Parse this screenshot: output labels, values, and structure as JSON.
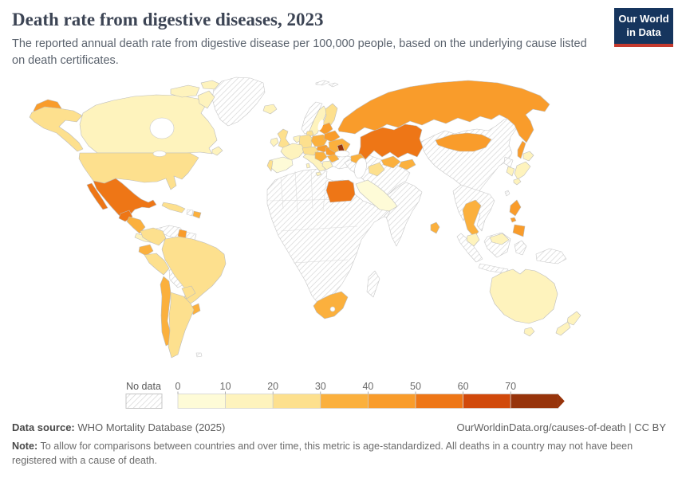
{
  "header": {
    "title": "Death rate from digestive diseases, 2023",
    "subtitle": "The reported annual death rate from digestive disease per 100,000 people, based on the underlying cause listed on death certificates."
  },
  "logo": {
    "line1": "Our World",
    "line2": "in Data",
    "bg_color": "#16355E",
    "bar_color": "#C53A2E"
  },
  "chart_data": {
    "type": "choropleth",
    "title": "Death rate from digestive diseases, 2023",
    "year": "2023",
    "unit": "deaths per 100,000 people (age-standardized)",
    "legend": {
      "no_data_label": "No data",
      "ticks": [
        "0",
        "10",
        "20",
        "30",
        "40",
        "50",
        "60",
        "70"
      ],
      "arrow_end": true,
      "bins": [
        {
          "range": "0-10",
          "color": "#FEFBD7"
        },
        {
          "range": "10-20",
          "color": "#FEF3BD"
        },
        {
          "range": "20-30",
          "color": "#FDE08E"
        },
        {
          "range": "30-40",
          "color": "#FBB03D"
        },
        {
          "range": "40-50",
          "color": "#F99C2B"
        },
        {
          "range": "50-60",
          "color": "#EE7616"
        },
        {
          "range": "60-70",
          "color": "#D1490B"
        },
        {
          "range": "70+",
          "color": "#97340B"
        }
      ]
    },
    "regions": {
      "greenland": {
        "label": "Greenland",
        "value": "no-data"
      },
      "svalbard": {
        "label": "Svalbard",
        "value": "no-data"
      },
      "canada": {
        "label": "Canada",
        "value": "10-20"
      },
      "arctic-islands": {
        "label": "Canadian Arctic Islands",
        "value": "10-20"
      },
      "newfoundland": {
        "label": "Newfoundland",
        "value": "10-20"
      },
      "alaska": {
        "label": "Alaska (United States)",
        "value": "20-30"
      },
      "usa": {
        "label": "United States",
        "value": "20-30"
      },
      "mexico": {
        "label": "Mexico",
        "value": "50-60"
      },
      "guatemala": {
        "label": "Guatemala",
        "value": "50-60"
      },
      "honduras-nicaragua": {
        "label": "Honduras / Nicaragua",
        "value": "30-40"
      },
      "costa-rica-panama": {
        "label": "Costa Rica / Panama",
        "value": "10-20"
      },
      "cuba": {
        "label": "Cuba",
        "value": "20-30"
      },
      "haiti": {
        "label": "Haiti",
        "value": "no-data"
      },
      "dominican-republic": {
        "label": "Dominican Republic",
        "value": "30-40"
      },
      "colombia": {
        "label": "Colombia",
        "value": "20-30"
      },
      "venezuela": {
        "label": "Venezuela",
        "value": "no-data"
      },
      "guyana": {
        "label": "Guyana",
        "value": "40-50"
      },
      "suriname-guiana": {
        "label": "Suriname / French Guiana",
        "value": "no-data"
      },
      "ecuador": {
        "label": "Ecuador",
        "value": "30-40"
      },
      "peru": {
        "label": "Peru",
        "value": "20-30"
      },
      "brazil": {
        "label": "Brazil",
        "value": "20-30"
      },
      "bolivia": {
        "label": "Bolivia",
        "value": "no-data"
      },
      "paraguay": {
        "label": "Paraguay",
        "value": "20-30"
      },
      "uruguay": {
        "label": "Uruguay",
        "value": "30-40"
      },
      "chile": {
        "label": "Chile",
        "value": "30-40"
      },
      "argentina": {
        "label": "Argentina",
        "value": "20-30"
      },
      "falkland-islands": {
        "label": "Falkland Islands",
        "value": "no-data"
      },
      "iceland": {
        "label": "Iceland",
        "value": "10-20"
      },
      "norway": {
        "label": "Norway",
        "value": "no-data"
      },
      "sweden": {
        "label": "Sweden",
        "value": "10-20"
      },
      "finland": {
        "label": "Finland",
        "value": "20-30"
      },
      "denmark": {
        "label": "Denmark",
        "value": "20-30"
      },
      "uk": {
        "label": "United Kingdom",
        "value": "20-30"
      },
      "ireland": {
        "label": "Ireland",
        "value": "10-20"
      },
      "netherlands-belgium": {
        "label": "Netherlands / Belgium",
        "value": "10-20"
      },
      "france": {
        "label": "France",
        "value": "10-20"
      },
      "spain": {
        "label": "Spain",
        "value": "0-10"
      },
      "portugal": {
        "label": "Portugal",
        "value": "20-30"
      },
      "germany": {
        "label": "Germany",
        "value": "20-30"
      },
      "poland": {
        "label": "Poland",
        "value": "30-40"
      },
      "czech-austria-switzerland": {
        "label": "Czechia / Austria / Switzerland",
        "value": "20-30"
      },
      "italy": {
        "label": "Italy",
        "value": "10-20"
      },
      "hungary": {
        "label": "Hungary",
        "value": "40-50"
      },
      "balkans": {
        "label": "Western Balkans",
        "value": "30-40"
      },
      "romania": {
        "label": "Romania",
        "value": "40-50"
      },
      "bulgaria": {
        "label": "Bulgaria",
        "value": "30-40"
      },
      "greece": {
        "label": "Greece",
        "value": "10-20"
      },
      "baltics": {
        "label": "Baltic states",
        "value": "40-50"
      },
      "belarus": {
        "label": "Belarus",
        "value": "40-50"
      },
      "ukraine": {
        "label": "Ukraine",
        "value": "30-40"
      },
      "moldova": {
        "label": "Moldova",
        "value": "70+"
      },
      "caucasus": {
        "label": "Georgia / Azerbaijan / Armenia",
        "value": "30-40"
      },
      "turkey": {
        "label": "Turkey",
        "value": "no-data"
      },
      "russia": {
        "label": "Russia",
        "value": "40-50"
      },
      "kazakhstan": {
        "label": "Kazakhstan",
        "value": "50-60"
      },
      "turkmenistan": {
        "label": "Turkmenistan",
        "value": "20-30"
      },
      "uzbekistan": {
        "label": "Uzbekistan",
        "value": "30-40"
      },
      "kyrgyzstan-tajikistan": {
        "label": "Kyrgyzstan / Tajikistan",
        "value": "30-40"
      },
      "middle-east": {
        "label": "Iran / Iraq / Afghanistan / Pakistan",
        "value": "no-data"
      },
      "saudi-arabia": {
        "label": "Saudi Arabia & Gulf states",
        "value": "0-10"
      },
      "yemen": {
        "label": "Yemen",
        "value": "no-data"
      },
      "africa": {
        "label": "Africa (most countries)",
        "value": "no-data"
      },
      "egypt": {
        "label": "Egypt",
        "value": "50-60"
      },
      "south-africa": {
        "label": "South Africa",
        "value": "30-40"
      },
      "madagascar": {
        "label": "Madagascar",
        "value": "no-data"
      },
      "india": {
        "label": "India",
        "value": "no-data"
      },
      "china": {
        "label": "China",
        "value": "no-data"
      },
      "mongolia": {
        "label": "Mongolia",
        "value": "40-50"
      },
      "north-korea": {
        "label": "North Korea",
        "value": "no-data"
      },
      "south-korea": {
        "label": "South Korea",
        "value": "10-20"
      },
      "japan": {
        "label": "Japan",
        "value": "10-20"
      },
      "taiwan": {
        "label": "Taiwan",
        "value": "no-data"
      },
      "myanmar-indochina": {
        "label": "Myanmar / Laos / Vietnam / Cambodia",
        "value": "no-data"
      },
      "thailand": {
        "label": "Thailand",
        "value": "30-40"
      },
      "malaysia": {
        "label": "Malaysia",
        "value": "10-20"
      },
      "sri-lanka": {
        "label": "Sri Lanka",
        "value": "30-40"
      },
      "philippines": {
        "label": "Philippines",
        "value": "40-50"
      },
      "indonesia": {
        "label": "Indonesia",
        "value": "no-data"
      },
      "new-guinea": {
        "label": "Papua New Guinea",
        "value": "no-data"
      },
      "australia": {
        "label": "Australia",
        "value": "10-20"
      },
      "tasmania": {
        "label": "Tasmania (Australia)",
        "value": "10-20"
      },
      "new-zealand": {
        "label": "New Zealand",
        "value": "10-20"
      }
    }
  },
  "footer": {
    "source_label": "Data source:",
    "source": "WHO Mortality Database (2025)",
    "link": "OurWorldinData.org/causes-of-death | CC BY",
    "note_label": "Note:",
    "note": "To allow for comparisons between countries and over time, this metric is age-standardized. All deaths in a country may not have been registered with a cause of death."
  }
}
